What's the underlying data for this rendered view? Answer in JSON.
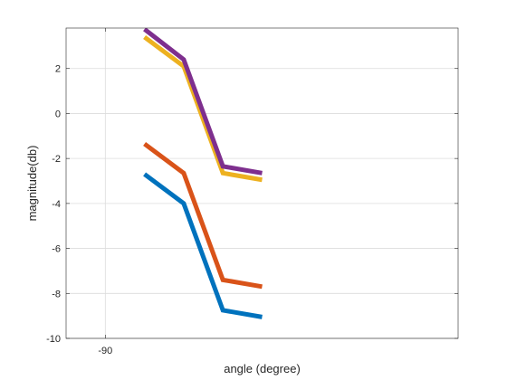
{
  "chart_data": {
    "type": "line",
    "title": "",
    "xlabel": "angle (degree)",
    "ylabel": "magnitude(db)",
    "xlim": [
      -100,
      0
    ],
    "ylim": [
      -10,
      3.8
    ],
    "x_ticks": [
      -90
    ],
    "x_tick_labels": [
      "-90"
    ],
    "y_ticks": [
      -10,
      -8,
      -6,
      -4,
      -2,
      0,
      2
    ],
    "y_tick_labels": [
      "-10",
      "-8",
      "-6",
      "-4",
      "-2",
      "0",
      "2"
    ],
    "grid": true,
    "x": [
      -80,
      -70,
      -60,
      -50
    ],
    "series": [
      {
        "color": "#0072BD",
        "values": [
          -2.7,
          -4.0,
          -8.75,
          -9.05
        ]
      },
      {
        "color": "#D95319",
        "values": [
          -1.35,
          -2.65,
          -7.4,
          -7.7
        ]
      },
      {
        "color": "#EDB120",
        "values": [
          3.4,
          2.1,
          -2.65,
          -2.95
        ]
      },
      {
        "color": "#7E2F8E",
        "values": [
          3.75,
          2.4,
          -2.35,
          -2.65
        ]
      }
    ]
  }
}
